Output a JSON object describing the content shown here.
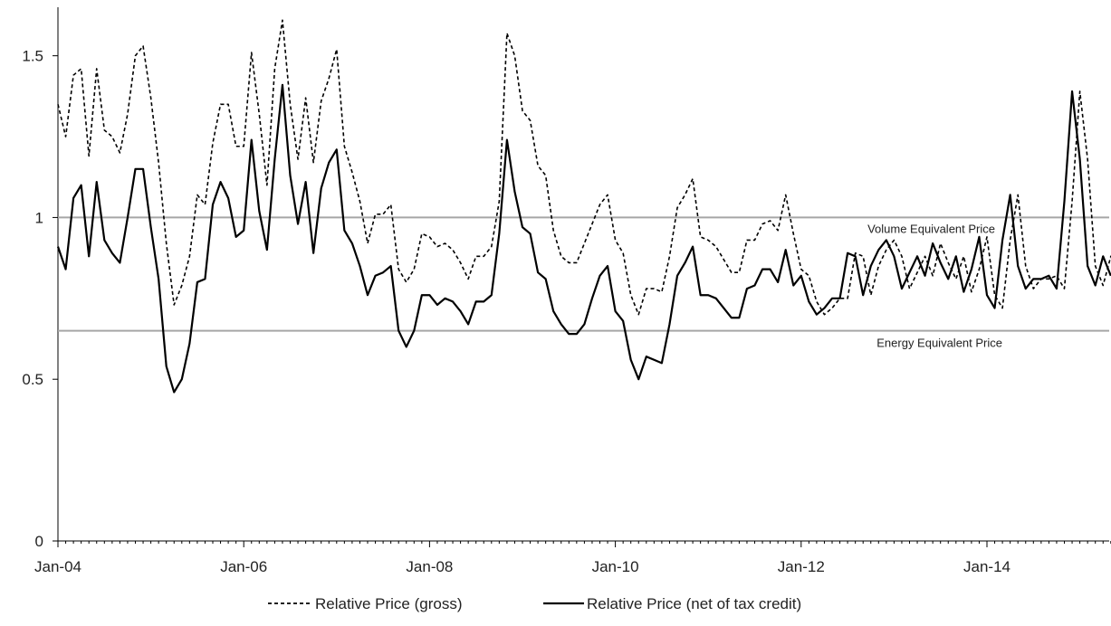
{
  "chart_data": {
    "type": "line",
    "title": "",
    "xlabel": "",
    "ylabel": "",
    "x_start": "Jan-04",
    "x_end": "Apr-15",
    "ylim": [
      0,
      1.65
    ],
    "y_ticks": [
      "0",
      "0.5",
      "1",
      "1.5"
    ],
    "x_ticks": [
      "Jan-04",
      "Jan-06",
      "Jan-08",
      "Jan-10",
      "Jan-12",
      "Jan-14"
    ],
    "grid": false,
    "legend_position": "bottom",
    "reference_lines": [
      {
        "label": "Volume Equivalent Price",
        "value": 1.0,
        "color": "#a6a6a6"
      },
      {
        "label": "Energy Equivalent Price",
        "value": 0.65,
        "color": "#a6a6a6"
      }
    ],
    "series": [
      {
        "name": "Relative Price (gross)",
        "style": "dashed",
        "color": "#000000",
        "values": [
          1.35,
          1.25,
          1.44,
          1.46,
          1.19,
          1.46,
          1.27,
          1.25,
          1.2,
          1.32,
          1.5,
          1.53,
          1.37,
          1.17,
          0.92,
          0.73,
          0.79,
          0.88,
          1.07,
          1.04,
          1.23,
          1.35,
          1.35,
          1.22,
          1.22,
          1.51,
          1.32,
          1.1,
          1.46,
          1.61,
          1.35,
          1.18,
          1.37,
          1.17,
          1.36,
          1.43,
          1.52,
          1.22,
          1.14,
          1.05,
          0.92,
          1.01,
          1.01,
          1.04,
          0.84,
          0.8,
          0.84,
          0.95,
          0.94,
          0.91,
          0.92,
          0.9,
          0.86,
          0.81,
          0.88,
          0.88,
          0.91,
          1.05,
          1.57,
          1.5,
          1.33,
          1.3,
          1.16,
          1.13,
          0.96,
          0.88,
          0.86,
          0.86,
          0.92,
          0.98,
          1.04,
          1.07,
          0.93,
          0.89,
          0.76,
          0.7,
          0.78,
          0.78,
          0.77,
          0.88,
          1.03,
          1.07,
          1.12,
          0.94,
          0.93,
          0.91,
          0.87,
          0.83,
          0.83,
          0.93,
          0.93,
          0.98,
          0.99,
          0.96,
          1.07,
          0.95,
          0.84,
          0.82,
          0.74,
          0.7,
          0.72,
          0.75,
          0.75,
          0.89,
          0.88,
          0.76,
          0.85,
          0.9,
          0.93,
          0.88,
          0.78,
          0.83,
          0.88,
          0.82,
          0.92,
          0.86,
          0.81,
          0.88,
          0.77,
          0.84,
          0.94,
          0.76,
          0.72,
          0.93,
          1.07,
          0.85,
          0.78,
          0.81,
          0.81,
          0.82,
          0.78,
          1.05,
          1.39,
          1.18,
          0.85,
          0.79,
          0.88,
          0.82
        ]
      },
      {
        "name": "Relative Price (net of tax credit)",
        "style": "solid",
        "color": "#000000",
        "values": [
          0.91,
          0.84,
          1.06,
          1.1,
          0.88,
          1.11,
          0.93,
          0.89,
          0.86,
          1.0,
          1.15,
          1.15,
          0.97,
          0.81,
          0.54,
          0.46,
          0.5,
          0.61,
          0.8,
          0.81,
          1.04,
          1.11,
          1.06,
          0.94,
          0.96,
          1.24,
          1.02,
          0.9,
          1.18,
          1.41,
          1.13,
          0.98,
          1.11,
          0.89,
          1.09,
          1.17,
          1.21,
          0.96,
          0.92,
          0.85,
          0.76,
          0.82,
          0.83,
          0.85,
          0.65,
          0.6,
          0.65,
          0.76,
          0.76,
          0.73,
          0.75,
          0.74,
          0.71,
          0.67,
          0.74,
          0.74,
          0.76,
          0.95,
          1.24,
          1.08,
          0.97,
          0.95,
          0.83,
          0.81,
          0.71,
          0.67,
          0.64,
          0.64,
          0.67,
          0.75,
          0.82,
          0.85,
          0.71,
          0.68,
          0.56,
          0.5,
          0.57,
          0.56,
          0.55,
          0.67,
          0.82,
          0.86,
          0.91,
          0.76,
          0.76,
          0.75,
          0.72,
          0.69,
          0.69,
          0.78,
          0.79,
          0.84,
          0.84,
          0.8,
          0.9,
          0.79,
          0.82,
          0.74,
          0.7,
          0.72,
          0.75,
          0.75,
          0.89,
          0.88,
          0.76,
          0.85,
          0.9,
          0.93,
          0.88,
          0.78,
          0.83,
          0.88,
          0.82,
          0.92,
          0.86,
          0.81,
          0.88,
          0.77,
          0.84,
          0.94,
          0.76,
          0.72,
          0.93,
          1.07,
          0.85,
          0.78,
          0.81,
          0.81,
          0.82,
          0.78,
          1.05,
          1.39,
          1.18,
          0.85,
          0.79,
          0.88,
          0.82
        ]
      }
    ]
  }
}
